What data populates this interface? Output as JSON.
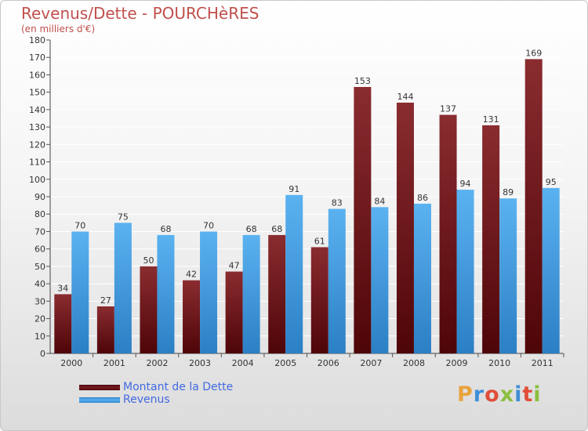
{
  "chart_data": {
    "type": "bar",
    "title": "Revenus/Dette - POURCHèRES",
    "subtitle": "(en milliers d'€)",
    "categories": [
      "2000",
      "2001",
      "2002",
      "2003",
      "2004",
      "2005",
      "2006",
      "2007",
      "2008",
      "2009",
      "2010",
      "2011"
    ],
    "series": [
      {
        "name": "Montant de la Dette",
        "color": "#6b0f14",
        "values": [
          34,
          27,
          50,
          42,
          47,
          68,
          61,
          153,
          144,
          137,
          131,
          169
        ]
      },
      {
        "name": "Revenus",
        "color": "#3d9ee6",
        "values": [
          70,
          75,
          68,
          70,
          68,
          91,
          83,
          84,
          86,
          94,
          89,
          95
        ]
      }
    ],
    "ylim": [
      0,
      180
    ],
    "ytick_step": 10,
    "yticks": [
      "0",
      "10",
      "20",
      "30",
      "40",
      "50",
      "60",
      "70",
      "80",
      "90",
      "100",
      "110",
      "120",
      "130",
      "140",
      "150",
      "160",
      "170",
      "180"
    ],
    "grid": true,
    "legend_position": "bottom-left"
  },
  "legend": {
    "items": [
      {
        "label": "Montant de la Dette",
        "color": "#6b0f14"
      },
      {
        "label": "Revenus",
        "color": "#3d9ee6"
      }
    ]
  },
  "logo": {
    "letters": [
      "P",
      "r",
      "o",
      "x",
      "i",
      "t",
      "i"
    ],
    "colors": [
      "#e8a33d",
      "#3f8fd6",
      "#e04e39",
      "#8bbf3f",
      "#3f8fd6",
      "#e04e39",
      "#8bbf3f"
    ]
  }
}
